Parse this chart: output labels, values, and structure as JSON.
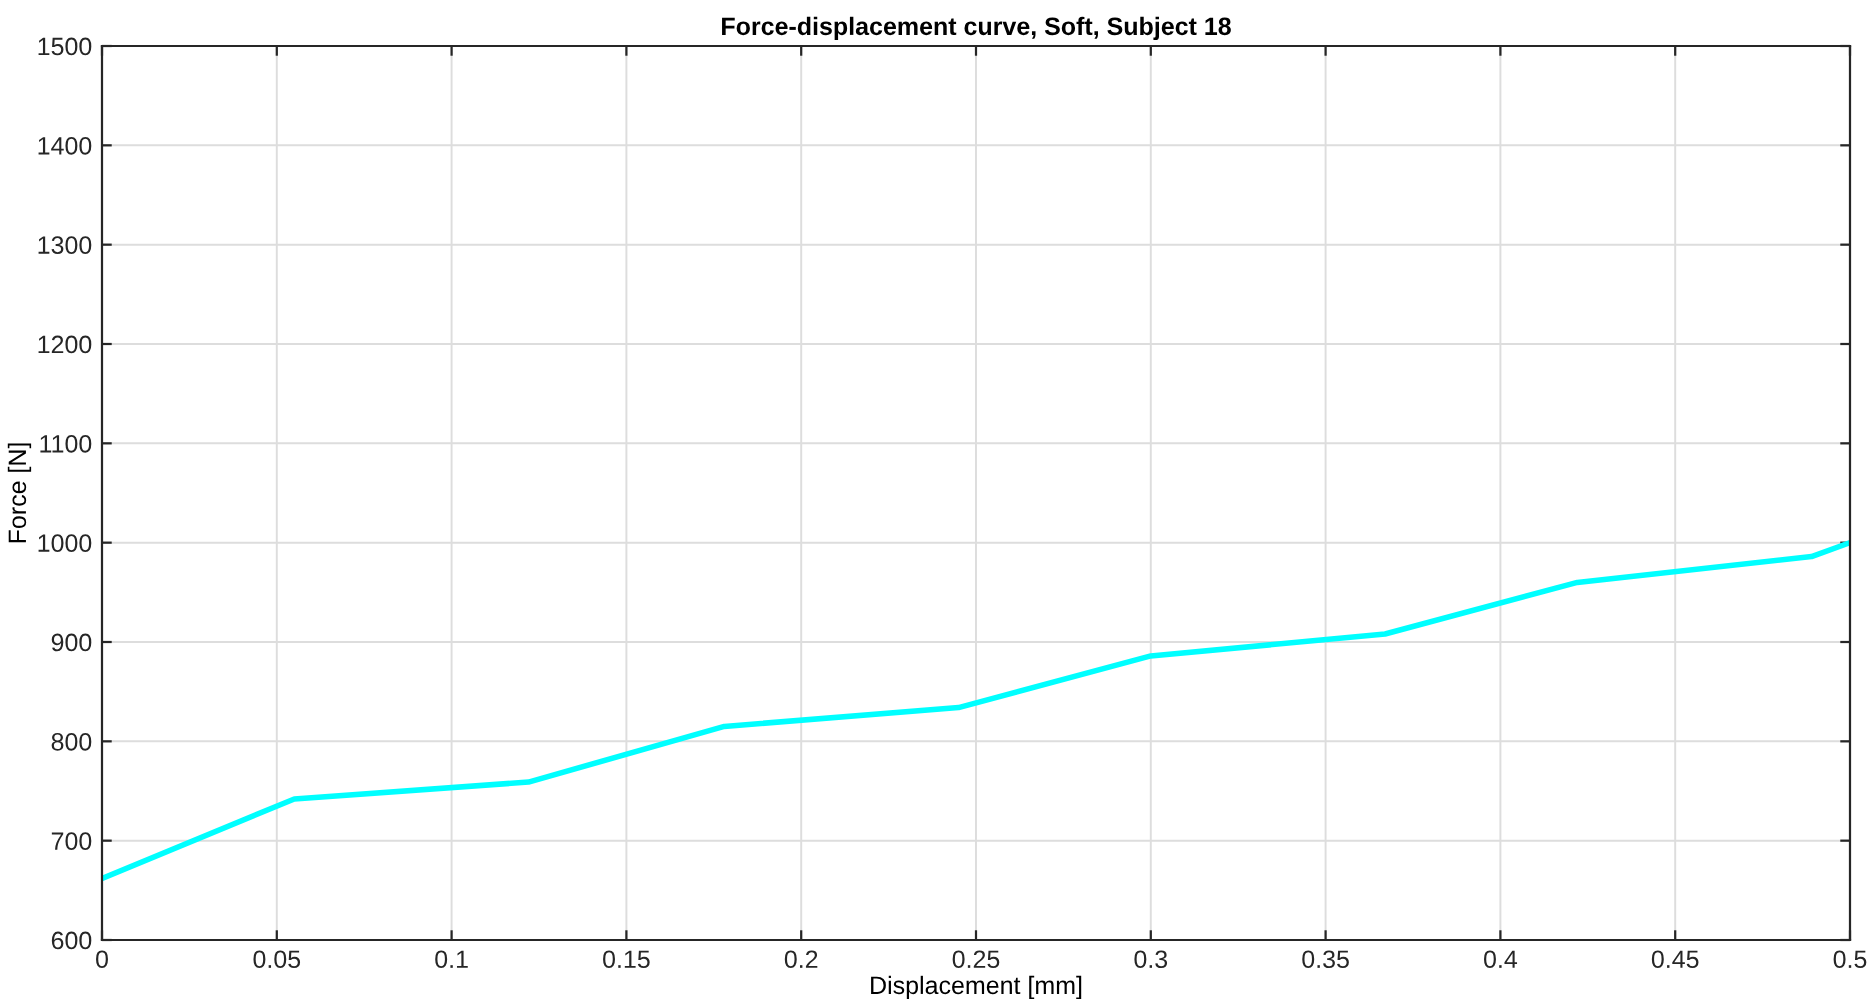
{
  "chart_data": {
    "type": "line",
    "title": "Force-displacement curve, Soft, Subject 18",
    "xlabel": "Displacement [mm]",
    "ylabel": "Force [N]",
    "x": [
      0,
      0.055,
      0.122,
      0.178,
      0.245,
      0.3,
      0.367,
      0.422,
      0.489,
      0.5
    ],
    "series": [
      {
        "color": "#00ffff",
        "values": [
          662,
          742,
          759,
          815,
          834,
          886,
          908,
          960,
          986,
          1000
        ]
      }
    ],
    "xlim": [
      0,
      0.5
    ],
    "xticks": [
      0,
      0.05,
      0.1,
      0.15,
      0.2,
      0.25,
      0.3,
      0.35,
      0.4,
      0.45,
      0.5
    ],
    "ylim": [
      600,
      1500
    ],
    "yticks": [
      600,
      700,
      800,
      900,
      1000,
      1100,
      1200,
      1300,
      1400,
      1500
    ],
    "grid": true,
    "marker": "none",
    "line_style": "solid"
  }
}
